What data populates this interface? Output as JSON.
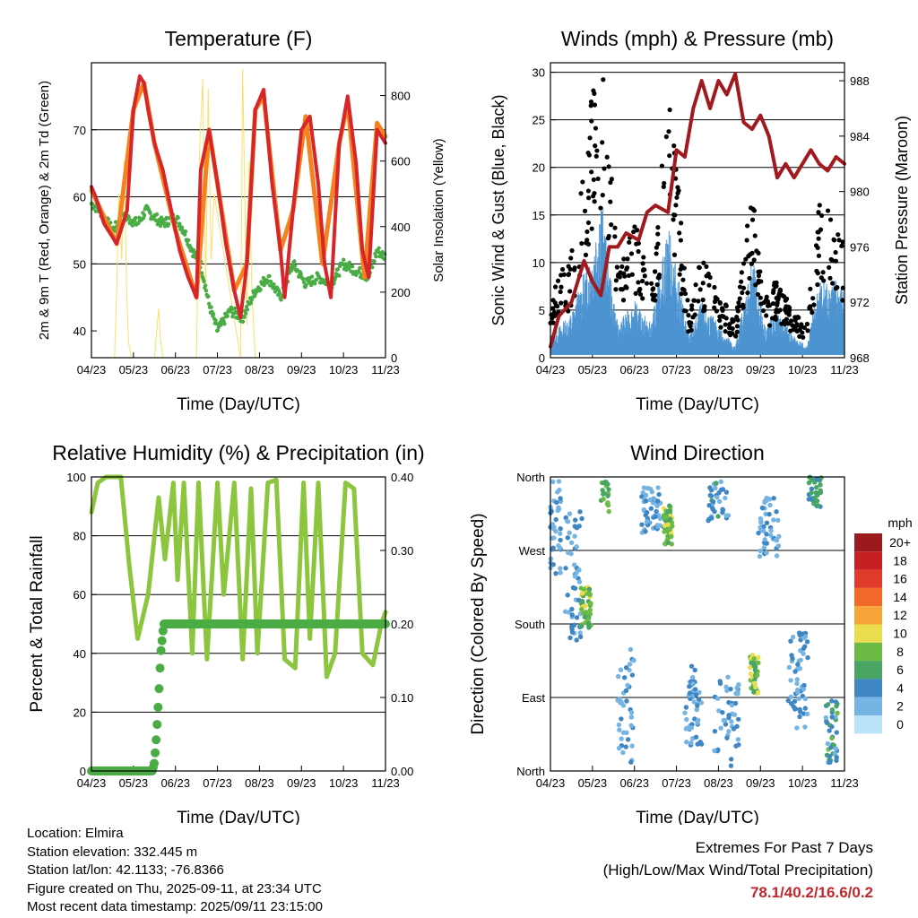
{
  "x_ticks": [
    "04/23",
    "05/23",
    "06/23",
    "07/23",
    "08/23",
    "09/23",
    "10/23",
    "11/23"
  ],
  "colors": {
    "temp_2m": "#d7262a",
    "temp_9m": "#f5821f",
    "dewpoint": "#4aac45",
    "solar": "#f7e26b",
    "gust": "#000000",
    "wind": "#4d94d1",
    "pressure": "#a0191e",
    "rh": "#8cc63f",
    "precip": "#4aac45"
  },
  "colorbar": {
    "title": "mph",
    "labels": [
      "20+",
      "18",
      "16",
      "14",
      "12",
      "10",
      "8",
      "6",
      "4",
      "2",
      "0"
    ],
    "colors": [
      "#9a1a1d",
      "#c61f24",
      "#e03a2a",
      "#f26a2a",
      "#f7a43a",
      "#eadd4e",
      "#6cbb45",
      "#48a564",
      "#3f86c4",
      "#76b4e3",
      "#b9e3f6"
    ]
  },
  "chart_data": [
    {
      "type": "line",
      "title": "Temperature (F)",
      "xlabel": "Time (Day/UTC)",
      "ylabel": "2m & 9m T (Red, Orange) & 2m Td (Green)",
      "y2label": "Solar Insolation (Yellow)",
      "ylim": [
        36,
        80
      ],
      "yticks": [
        40,
        50,
        60,
        70
      ],
      "y2lim": [
        0,
        900
      ],
      "y2ticks": [
        0,
        200,
        400,
        600,
        800
      ],
      "series": [
        {
          "key": "temp_2m",
          "x": [
            0,
            0.1,
            0.3,
            0.6,
            0.85,
            1.0,
            1.15,
            1.25,
            1.35,
            1.5,
            1.7,
            1.9,
            2.1,
            2.3,
            2.5,
            2.6,
            2.8,
            3.0,
            3.2,
            3.4,
            3.55,
            3.7,
            3.9,
            4.1,
            4.3,
            4.5,
            4.6,
            4.8,
            5.0,
            5.2,
            5.4,
            5.55,
            5.7,
            5.9,
            6.1,
            6.3,
            6.45,
            6.6,
            6.8,
            7.0
          ],
          "y": [
            61.5,
            60,
            56,
            53,
            58,
            73,
            78,
            77,
            73,
            68,
            64,
            58,
            52,
            48,
            45,
            64,
            70,
            62,
            53,
            46,
            42,
            50,
            73,
            76,
            62,
            52,
            45,
            58,
            70,
            72,
            62,
            50,
            45,
            68,
            75,
            65,
            52,
            48,
            70,
            68
          ]
        },
        {
          "key": "temp_9m",
          "x": [
            0,
            0.6,
            1.0,
            1.25,
            1.5,
            2.0,
            2.5,
            2.8,
            3.4,
            3.7,
            3.9,
            4.1,
            4.5,
            4.8,
            5.1,
            5.5,
            5.9,
            6.1,
            6.5,
            6.8,
            7.0
          ],
          "y": [
            61,
            53,
            73,
            77,
            68,
            55,
            45,
            70,
            46,
            50,
            73,
            75,
            52,
            58,
            72,
            50,
            68,
            74,
            48,
            71,
            69
          ]
        },
        {
          "key": "dewpoint",
          "x": [
            0,
            0.2,
            0.5,
            0.8,
            1.1,
            1.3,
            1.5,
            1.7,
            2.0,
            2.2,
            2.4,
            2.6,
            2.8,
            3.0,
            3.3,
            3.6,
            3.9,
            4.2,
            4.5,
            4.8,
            5.1,
            5.4,
            5.7,
            6.0,
            6.3,
            6.6,
            6.8,
            7.0
          ],
          "y": [
            59,
            58,
            55,
            57,
            56,
            58,
            57,
            56,
            57,
            55,
            52,
            50,
            44,
            40,
            43,
            42,
            46,
            48,
            45,
            50,
            47,
            48,
            47,
            50,
            49,
            48,
            52,
            51
          ]
        },
        {
          "key": "solar",
          "x": [
            0.55,
            0.6,
            0.65,
            0.72,
            0.78,
            0.84,
            0.88,
            0.95,
            1.1,
            1.5,
            1.6,
            1.64,
            1.7,
            2.5,
            2.58,
            2.65,
            2.72,
            2.78,
            2.85,
            2.92,
            3.55,
            3.6,
            3.7,
            3.75,
            3.82,
            3.9
          ],
          "y": [
            0,
            200,
            500,
            300,
            600,
            200,
            50,
            0,
            0,
            0,
            150,
            60,
            0,
            0,
            650,
            850,
            200,
            820,
            300,
            500,
            0,
            880,
            100,
            600,
            200,
            0
          ]
        }
      ]
    },
    {
      "type": "scatter",
      "title": "Winds (mph) & Pressure (mb)",
      "xlabel": "Time (Day/UTC)",
      "ylabel": "Sonic Wind & Gust (Blue, Black)",
      "y2label": "Station Pressure (Maroon)",
      "ylim": [
        0,
        31
      ],
      "yticks": [
        0,
        5,
        10,
        15,
        20,
        25,
        30
      ],
      "y2lim": [
        968,
        989.3
      ],
      "y2ticks": [
        968,
        972,
        976,
        980,
        984,
        988
      ],
      "series": [
        {
          "key": "pressure",
          "type": "line",
          "x": [
            0,
            0.2,
            0.5,
            0.8,
            1.0,
            1.2,
            1.4,
            1.6,
            1.8,
            2.1,
            2.3,
            2.5,
            2.8,
            3.0,
            3.2,
            3.4,
            3.6,
            3.8,
            4.0,
            4.2,
            4.4,
            4.6,
            4.8,
            5.0,
            5.2,
            5.4,
            5.6,
            5.8,
            6.0,
            6.2,
            6.4,
            6.6,
            6.8,
            7.0
          ],
          "y": [
            968.8,
            971,
            972,
            975,
            973.5,
            972.5,
            976,
            976,
            977,
            976.5,
            978.5,
            979,
            978.5,
            983,
            982.5,
            986,
            988,
            986,
            988,
            987,
            988.5,
            985,
            984.5,
            985.5,
            984,
            981,
            982,
            981,
            982,
            983,
            982,
            981.5,
            982.5,
            982
          ]
        },
        {
          "key": "gust",
          "x": [
            0,
            0.5,
            1.0,
            1.2,
            1.4,
            1.6,
            2.0,
            2.4,
            2.8,
            3.0,
            3.3,
            3.6,
            4.0,
            4.4,
            4.8,
            5.1,
            5.4,
            5.8,
            6.1,
            6.4,
            6.8,
            7.0
          ],
          "y": [
            6,
            9,
            24,
            28,
            19,
            8,
            12,
            7,
            23,
            17,
            4,
            9,
            6,
            3,
            15,
            5,
            7,
            4,
            3,
            14,
            12,
            10
          ]
        },
        {
          "key": "wind",
          "x": [
            0,
            0.5,
            1.0,
            1.2,
            1.4,
            1.6,
            2.0,
            2.4,
            2.8,
            3.0,
            3.3,
            3.6,
            4.0,
            4.4,
            4.8,
            5.1,
            5.4,
            5.8,
            6.1,
            6.4,
            6.8,
            7.0
          ],
          "y": [
            2,
            4,
            10,
            15,
            8,
            3,
            5,
            3,
            12,
            8,
            2,
            5,
            3,
            1,
            9,
            3,
            4,
            2,
            1,
            7,
            7,
            6
          ]
        }
      ]
    },
    {
      "type": "line",
      "title": "Relative Humidity (%) & Precipitation (in)",
      "xlabel": "Time (Day/UTC)",
      "ylabel": "Percent & Total Rainfall",
      "ylim": [
        0,
        100
      ],
      "yticks": [
        0,
        20,
        40,
        60,
        80,
        100
      ],
      "y2lim": [
        0,
        0.4
      ],
      "y2ticks": [
        "0.00",
        "0.10",
        "0.20",
        "0.30",
        "0.40"
      ],
      "series": [
        {
          "key": "rh",
          "x": [
            0,
            0.15,
            0.35,
            0.7,
            0.9,
            1.1,
            1.35,
            1.6,
            1.75,
            1.95,
            2.05,
            2.2,
            2.4,
            2.55,
            2.75,
            3.0,
            3.15,
            3.4,
            3.6,
            3.8,
            3.95,
            4.2,
            4.4,
            4.6,
            4.85,
            5.05,
            5.2,
            5.4,
            5.6,
            5.8,
            6.05,
            6.25,
            6.45,
            6.7,
            6.9,
            7.0
          ],
          "y": [
            88,
            98,
            100,
            100,
            70,
            45,
            60,
            93,
            72,
            98,
            65,
            98,
            40,
            98,
            38,
            98,
            60,
            98,
            38,
            96,
            40,
            98,
            99,
            38,
            35,
            98,
            45,
            98,
            32,
            40,
            98,
            96,
            40,
            36,
            50,
            54
          ]
        },
        {
          "key": "precip",
          "x": [
            0,
            1.45,
            1.5,
            1.55,
            1.6,
            1.65,
            1.72,
            7.0
          ],
          "y": [
            0,
            0,
            0.012,
            0.05,
            0.1,
            0.16,
            0.2,
            0.2
          ]
        }
      ]
    },
    {
      "type": "scatter",
      "title": "Wind Direction",
      "xlabel": "Time (Day/UTC)",
      "ylabel": "Direction (Colored By Speed)",
      "ylim": [
        0,
        360
      ],
      "yticks": [
        "North",
        "East",
        "South",
        "West",
        "North"
      ],
      "colorbar_label": "mph"
    }
  ],
  "info": {
    "location": "Location: Elmira",
    "elevation": "Station elevation: 332.445 m",
    "latlon": "Station lat/lon: 42.1133; -76.8366",
    "created": "Figure created on Thu, 2025-09-11, at 23:34 UTC",
    "recent": "Most recent data timestamp: 2025/09/11 23:15:00"
  },
  "extremes": {
    "title1": "Extremes For Past 7 Days",
    "title2": "(High/Low/Max Wind/Total Precipitation)",
    "values": "78.1/40.2/16.6/0.2"
  }
}
